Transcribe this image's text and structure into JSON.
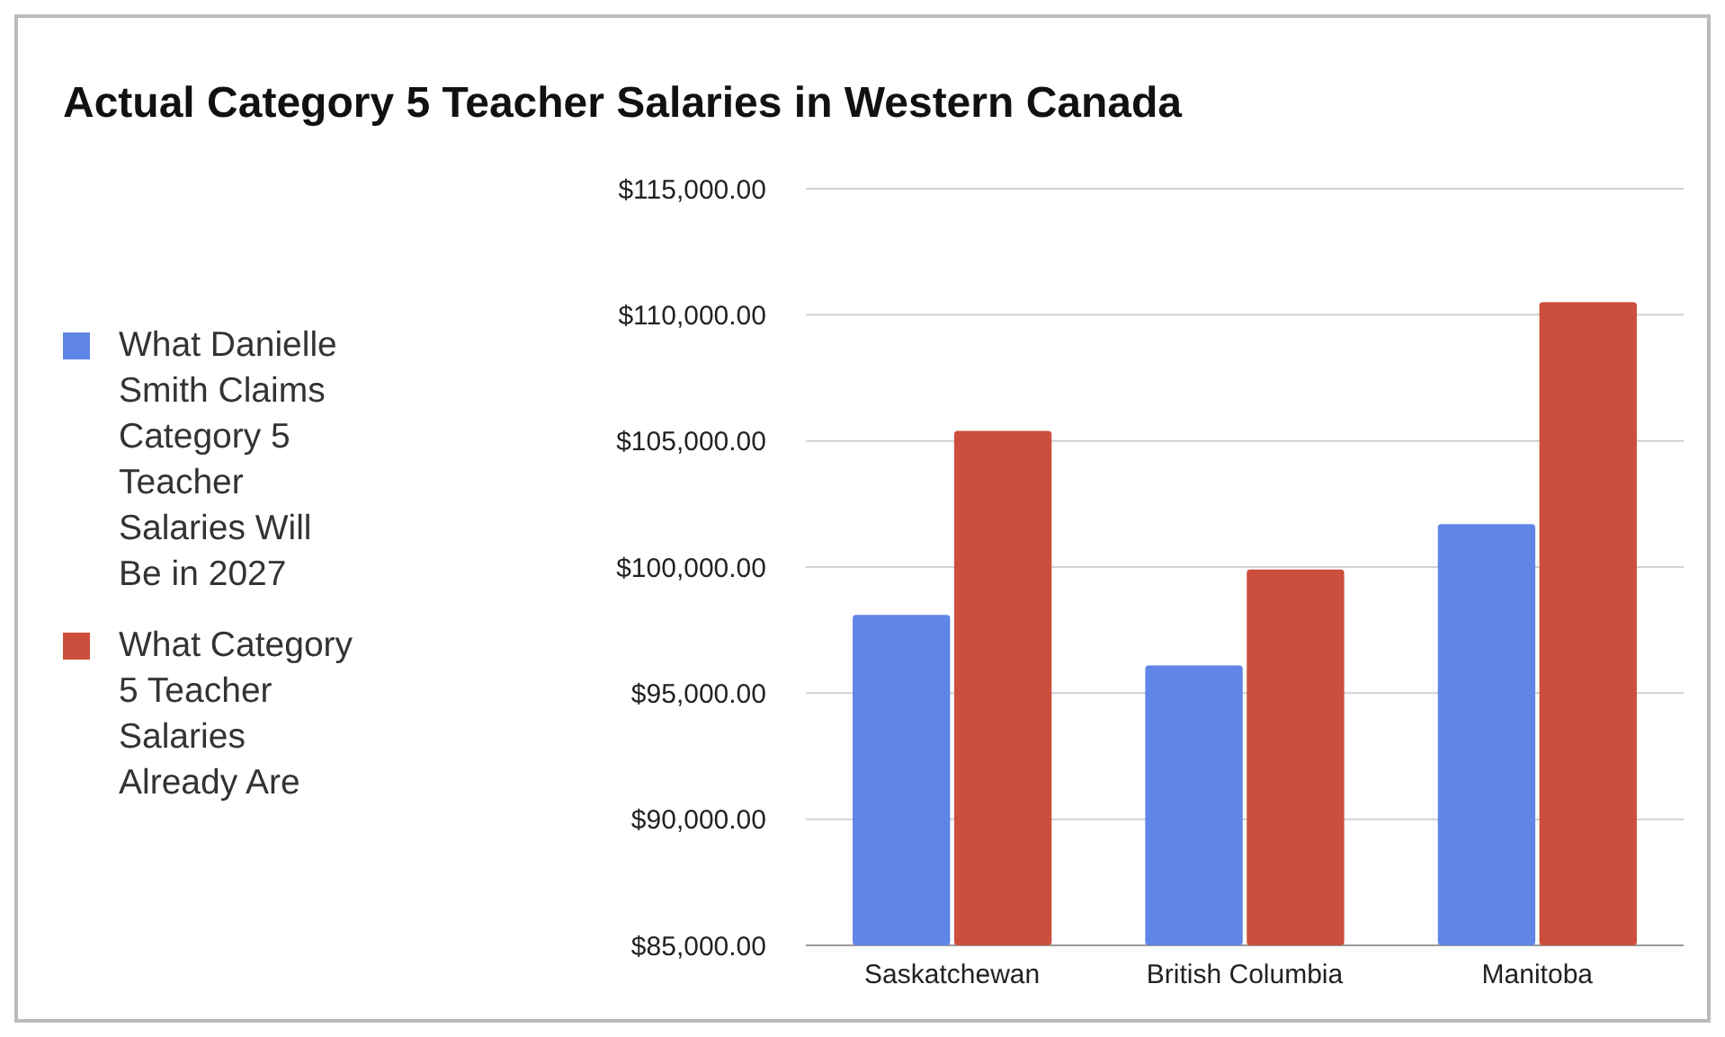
{
  "chart_data": {
    "type": "bar",
    "title": "Actual Category 5 Teacher Salaries in Western Canada",
    "categories": [
      "Saskatchewan",
      "British Columbia",
      "Manitoba"
    ],
    "series": [
      {
        "name": "What Danielle Smith Claims Category 5 Teacher Salaries Will Be in 2027",
        "color": "#5f85e6",
        "values": [
          98100,
          96100,
          101700
        ]
      },
      {
        "name": "What Category 5 Teacher Salaries Already Are",
        "color": "#cc4e3c",
        "values": [
          105400,
          99900,
          110500
        ]
      }
    ],
    "ylim": [
      85000,
      115000
    ],
    "yticks": [
      {
        "value": 85000,
        "label": "$85,000.00"
      },
      {
        "value": 90000,
        "label": "$90,000.00"
      },
      {
        "value": 95000,
        "label": "$95,000.00"
      },
      {
        "value": 100000,
        "label": "$100,000.00"
      },
      {
        "value": 105000,
        "label": "$105,000.00"
      },
      {
        "value": 110000,
        "label": "$110,000.00"
      },
      {
        "value": 115000,
        "label": "$115,000.00"
      }
    ],
    "grid": "y",
    "legend": "left"
  }
}
